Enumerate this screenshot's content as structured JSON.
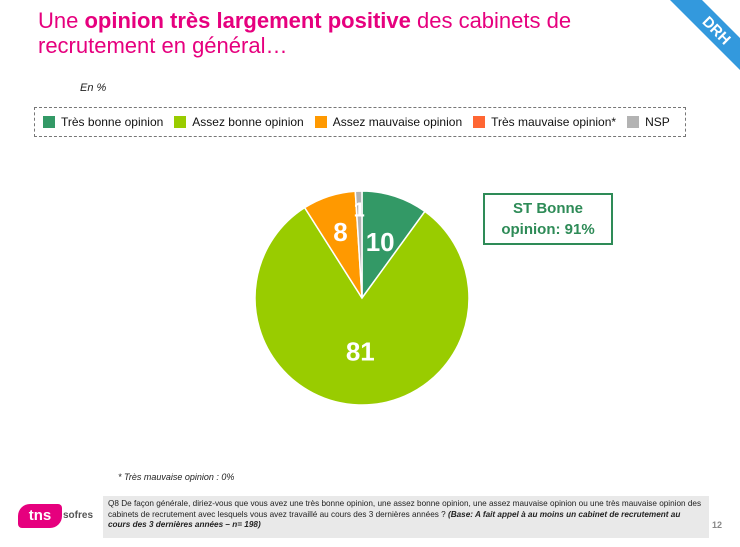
{
  "title": {
    "part1": "Une ",
    "bold": "opinion très largement positive",
    "part2": " des cabinets de recrutement en général…"
  },
  "corner_label": "DRH",
  "unit_label": "En %",
  "subtotal": {
    "line1": "ST Bonne",
    "line2": "opinion: 91%"
  },
  "chart_data": {
    "type": "pie",
    "legend_placement": "top",
    "slices": [
      {
        "name": "Très bonne opinion",
        "value": 10,
        "label": "10",
        "color": "#339966"
      },
      {
        "name": "Assez bonne opinion",
        "value": 81,
        "label": "81",
        "color": "#99cc00"
      },
      {
        "name": "Assez mauvaise opinion",
        "value": 8,
        "label": "8",
        "color": "#ff9900"
      },
      {
        "name": "Très mauvaise opinion*",
        "value": 0,
        "label": "",
        "color": "#ff6633"
      },
      {
        "name": "NSP",
        "value": 1,
        "label": "1",
        "color": "#b3b3b3"
      }
    ]
  },
  "footnote": "* Très mauvaise opinion : 0%",
  "logo": {
    "mark": "tns",
    "sub": "sofres"
  },
  "question": {
    "text": "Q8 De façon générale, diriez-vous que vous avez une très bonne opinion, une assez bonne opinion, une assez mauvaise opinion ou une très mauvaise opinion des cabinets de recrutement avec lesquels vous avez travaillé au cours des 3 dernières années ? ",
    "base": "(Base: A fait appel à au moins un cabinet de recrutement au cours des 3 dernières années – n= 198)"
  },
  "page_number": "12",
  "colors": {
    "accent": "#e6007e",
    "ribbon": "#3399dd",
    "subtotal": "#2e8b57"
  }
}
